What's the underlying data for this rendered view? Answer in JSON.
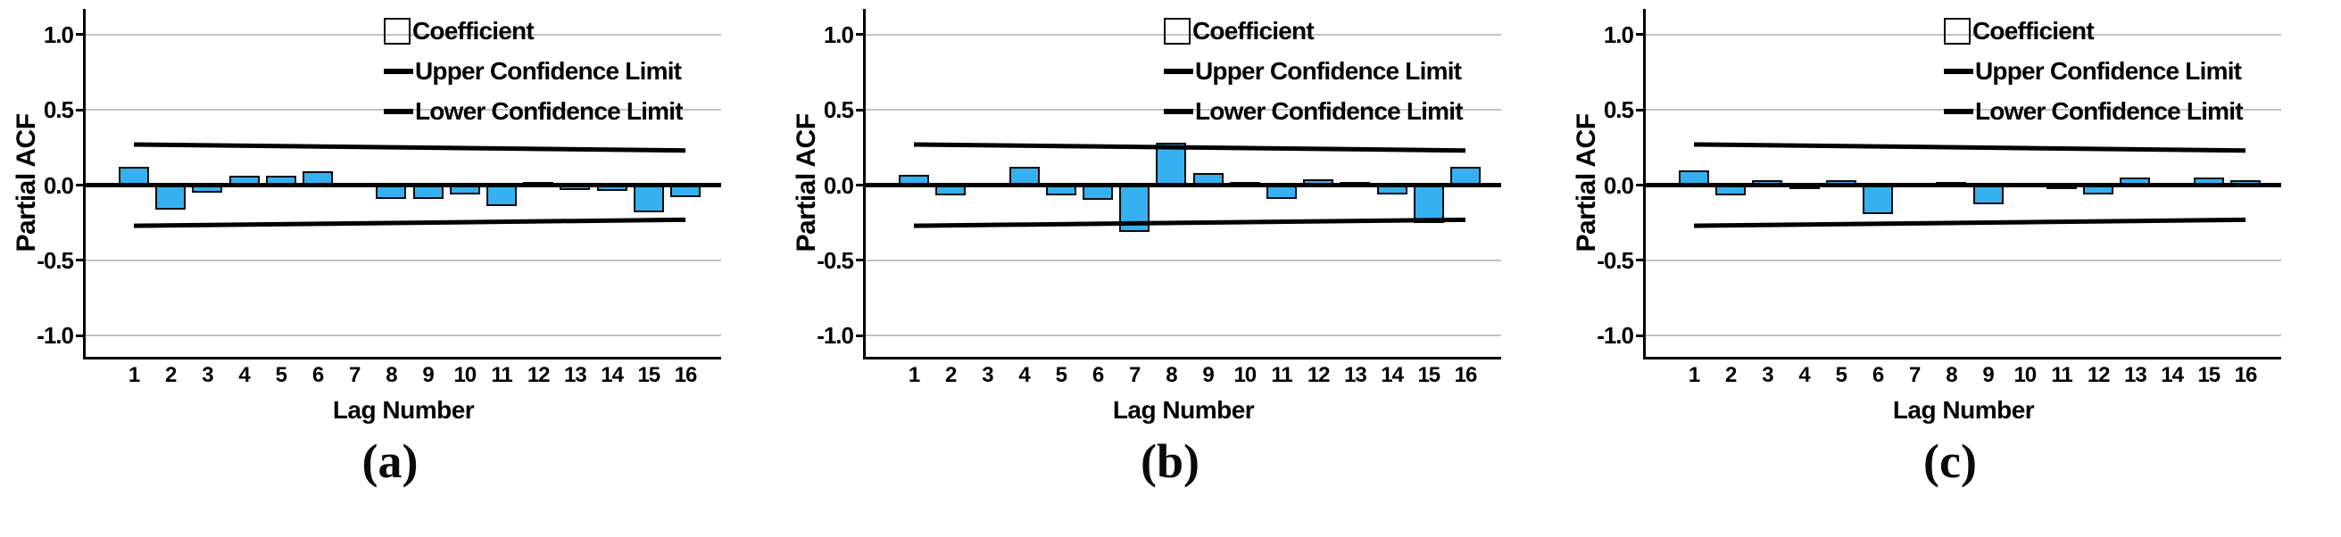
{
  "colors": {
    "bar_fill": "#35B1F1",
    "bar_border": "#0A0A0A",
    "line": "#000000",
    "grid": "#C2C2C2",
    "background": "#FFFFFF"
  },
  "chart_data": [
    {
      "type": "bar",
      "panel": "a",
      "title": "(a)",
      "xlabel": "Lag Number",
      "ylabel": "Partial ACF",
      "categories": [
        "1",
        "2",
        "3",
        "4",
        "5",
        "6",
        "7",
        "8",
        "9",
        "10",
        "11",
        "12",
        "13",
        "14",
        "15",
        "16"
      ],
      "ytick_labels": [
        "1.0",
        "0.5",
        "0.0",
        "-0.5",
        "-1.0"
      ],
      "ytick_values": [
        1.0,
        0.5,
        0.0,
        -0.5,
        -1.0
      ],
      "ylim": [
        -1.15,
        1.15
      ],
      "grid": true,
      "legend": [
        "Coefficient",
        "Upper Confidence Limit",
        "Lower Confidence Limit"
      ],
      "legend_position": "upper right inside",
      "series": [
        {
          "name": "Coefficient",
          "type": "bar",
          "values": [
            0.12,
            -0.16,
            -0.05,
            0.06,
            0.06,
            0.09,
            0.0,
            -0.09,
            -0.09,
            -0.06,
            -0.14,
            0.02,
            -0.03,
            -0.04,
            -0.18,
            -0.08
          ]
        },
        {
          "name": "Upper Confidence Limit",
          "type": "line",
          "start": 0.27,
          "end": 0.23
        },
        {
          "name": "Lower Confidence Limit",
          "type": "line",
          "start": -0.27,
          "end": -0.23
        }
      ]
    },
    {
      "type": "bar",
      "panel": "b",
      "title": "(b)",
      "xlabel": "Lag Number",
      "ylabel": "Partial ACF",
      "categories": [
        "1",
        "2",
        "3",
        "4",
        "5",
        "6",
        "7",
        "8",
        "9",
        "10",
        "11",
        "12",
        "13",
        "14",
        "15",
        "16"
      ],
      "ytick_labels": [
        "1.0",
        "0.5",
        "0.0",
        "-0.5",
        "-1.0"
      ],
      "ytick_values": [
        1.0,
        0.5,
        0.0,
        -0.5,
        -1.0
      ],
      "ylim": [
        -1.15,
        1.15
      ],
      "grid": true,
      "legend": [
        "Coefficient",
        "Upper Confidence Limit",
        "Lower Confidence Limit"
      ],
      "legend_position": "upper right inside",
      "series": [
        {
          "name": "Coefficient",
          "type": "bar",
          "values": [
            0.07,
            -0.07,
            0.0,
            0.12,
            -0.07,
            -0.1,
            -0.31,
            0.28,
            0.08,
            0.02,
            -0.09,
            0.04,
            0.02,
            -0.06,
            -0.25,
            0.12
          ]
        },
        {
          "name": "Upper Confidence Limit",
          "type": "line",
          "start": 0.27,
          "end": 0.23
        },
        {
          "name": "Lower Confidence Limit",
          "type": "line",
          "start": -0.27,
          "end": -0.23
        }
      ]
    },
    {
      "type": "bar",
      "panel": "c",
      "title": "(c)",
      "xlabel": "Lag Number",
      "ylabel": "Partial ACF",
      "categories": [
        "1",
        "2",
        "3",
        "4",
        "5",
        "6",
        "7",
        "8",
        "9",
        "10",
        "11",
        "12",
        "13",
        "14",
        "15",
        "16"
      ],
      "ytick_labels": [
        "1.0",
        "0.5",
        "0.0",
        "-0.5",
        "-1.0"
      ],
      "ytick_values": [
        1.0,
        0.5,
        0.0,
        -0.5,
        -1.0
      ],
      "ylim": [
        -1.15,
        1.15
      ],
      "grid": true,
      "legend": [
        "Coefficient",
        "Upper Confidence Limit",
        "Lower Confidence Limit"
      ],
      "legend_position": "upper right inside",
      "series": [
        {
          "name": "Coefficient",
          "type": "bar",
          "values": [
            0.1,
            -0.07,
            0.03,
            -0.02,
            0.03,
            -0.19,
            0.0,
            0.02,
            -0.13,
            0.01,
            -0.02,
            -0.06,
            0.05,
            0.0,
            0.05,
            0.03
          ]
        },
        {
          "name": "Upper Confidence Limit",
          "type": "line",
          "start": 0.27,
          "end": 0.23
        },
        {
          "name": "Lower Confidence Limit",
          "type": "line",
          "start": -0.27,
          "end": -0.23
        }
      ]
    }
  ]
}
